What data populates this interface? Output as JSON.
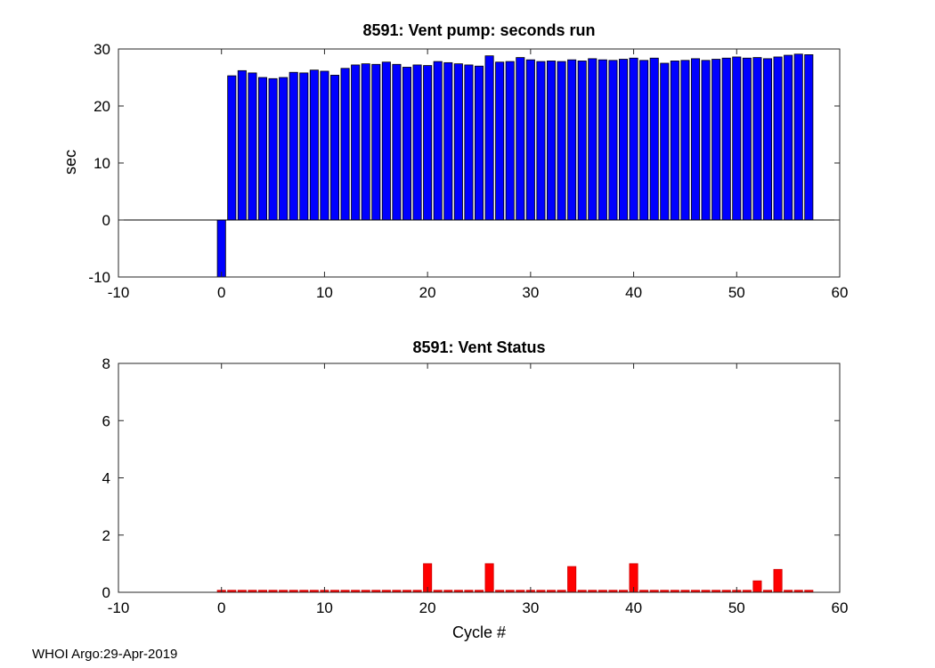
{
  "footer": {
    "credit": "WHOI Argo:29-Apr-2019"
  },
  "chart_data": [
    {
      "type": "bar",
      "title": "8591: Vent pump: seconds run",
      "xlabel": "",
      "ylabel": "sec",
      "xlim": [
        -10,
        60
      ],
      "ylim": [
        -10,
        30
      ],
      "xticks": [
        -10,
        0,
        10,
        20,
        30,
        40,
        50,
        60
      ],
      "yticks": [
        -10,
        0,
        10,
        20,
        30
      ],
      "grid": false,
      "legend": null,
      "bar_color": "#0000ff",
      "bar_edge": "#000000",
      "x": [
        0,
        1,
        2,
        3,
        4,
        5,
        6,
        7,
        8,
        9,
        10,
        11,
        12,
        13,
        14,
        15,
        16,
        17,
        18,
        19,
        20,
        21,
        22,
        23,
        24,
        25,
        26,
        27,
        28,
        29,
        30,
        31,
        32,
        33,
        34,
        35,
        36,
        37,
        38,
        39,
        40,
        41,
        42,
        43,
        44,
        45,
        46,
        47,
        48,
        49,
        50,
        51,
        52,
        53,
        54,
        55,
        56,
        57
      ],
      "values": [
        -10,
        25.3,
        26.2,
        25.8,
        25.0,
        24.8,
        25.0,
        25.9,
        25.8,
        26.3,
        26.1,
        25.4,
        26.6,
        27.2,
        27.4,
        27.3,
        27.7,
        27.3,
        26.8,
        27.2,
        27.1,
        27.8,
        27.6,
        27.4,
        27.2,
        27.0,
        28.8,
        27.7,
        27.8,
        28.5,
        28.1,
        27.8,
        27.9,
        27.8,
        28.1,
        27.9,
        28.3,
        28.1,
        28.0,
        28.2,
        28.4,
        28.0,
        28.4,
        27.5,
        27.9,
        28.0,
        28.3,
        28.0,
        28.2,
        28.4,
        28.6,
        28.4,
        28.5,
        28.3,
        28.6,
        28.9,
        29.1,
        29.0
      ]
    },
    {
      "type": "bar",
      "title": "8591: Vent Status",
      "xlabel": "Cycle #",
      "ylabel": "",
      "xlim": [
        -10,
        60
      ],
      "ylim": [
        0,
        8
      ],
      "xticks": [
        -10,
        0,
        10,
        20,
        30,
        40,
        50,
        60
      ],
      "yticks": [
        0,
        2,
        4,
        6,
        8
      ],
      "grid": false,
      "legend": null,
      "bar_color": "#ff0000",
      "bar_edge": "#cc0000",
      "x": [
        0,
        1,
        2,
        3,
        4,
        5,
        6,
        7,
        8,
        9,
        10,
        11,
        12,
        13,
        14,
        15,
        16,
        17,
        18,
        19,
        20,
        21,
        22,
        23,
        24,
        25,
        26,
        27,
        28,
        29,
        30,
        31,
        32,
        33,
        34,
        35,
        36,
        37,
        38,
        39,
        40,
        41,
        42,
        43,
        44,
        45,
        46,
        47,
        48,
        49,
        50,
        51,
        52,
        53,
        54,
        55,
        56,
        57
      ],
      "values": [
        0.07,
        0.07,
        0.07,
        0.07,
        0.07,
        0.07,
        0.07,
        0.07,
        0.07,
        0.07,
        0.07,
        0.07,
        0.07,
        0.07,
        0.07,
        0.07,
        0.07,
        0.07,
        0.07,
        0.07,
        1.0,
        0.07,
        0.07,
        0.07,
        0.07,
        0.07,
        1.0,
        0.07,
        0.07,
        0.07,
        0.07,
        0.07,
        0.07,
        0.07,
        0.9,
        0.07,
        0.07,
        0.07,
        0.07,
        0.07,
        1.0,
        0.07,
        0.07,
        0.07,
        0.07,
        0.07,
        0.07,
        0.07,
        0.07,
        0.07,
        0.07,
        0.07,
        0.4,
        0.07,
        0.8,
        0.07,
        0.07,
        0.07
      ]
    }
  ]
}
